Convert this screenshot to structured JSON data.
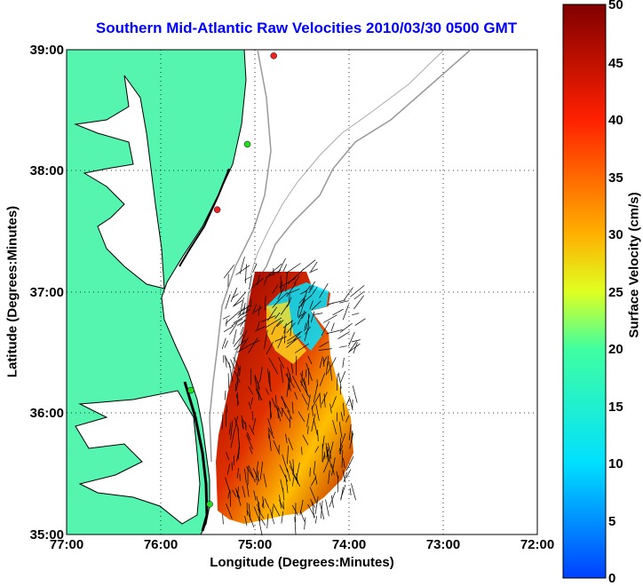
{
  "title": "Southern Mid-Atlantic Raw Velocities 2010/03/30 0500 GMT",
  "xlabel": "Longitude (Degrees:Minutes)",
  "ylabel": "Latitude (Degrees:Minutes)",
  "colorbar": {
    "label": "Surface Velocity (cm/s)",
    "min": 0,
    "max": 50,
    "ticks": [
      "0",
      "5",
      "10",
      "15",
      "20",
      "25",
      "30",
      "35",
      "40",
      "45",
      "50"
    ]
  },
  "axes": {
    "x_ticks": [
      "77:00",
      "76:00",
      "75:00",
      "74:00",
      "73:00",
      "72:00"
    ],
    "y_ticks": [
      "39:00",
      "38:00",
      "37:00",
      "36:00",
      "35:00"
    ],
    "x_range_deg_west": [
      77,
      72
    ],
    "y_range_deg_north": [
      35,
      39
    ],
    "grid": "dotted"
  },
  "colors": {
    "land": "#55f5b0",
    "coast": "#000000",
    "bathymetry": "#999999",
    "title": "#0000ff",
    "station_green": "#22dd22",
    "station_red": "#ee2222"
  },
  "stations": [
    {
      "lon": 74.8,
      "lat": 38.95,
      "color": "red"
    },
    {
      "lon": 75.08,
      "lat": 38.22,
      "color": "green"
    },
    {
      "lon": 75.4,
      "lat": 37.68,
      "color": "red"
    },
    {
      "lon": 75.68,
      "lat": 36.19,
      "color": "green"
    },
    {
      "lon": 75.48,
      "lat": 35.25,
      "color": "green"
    }
  ]
}
